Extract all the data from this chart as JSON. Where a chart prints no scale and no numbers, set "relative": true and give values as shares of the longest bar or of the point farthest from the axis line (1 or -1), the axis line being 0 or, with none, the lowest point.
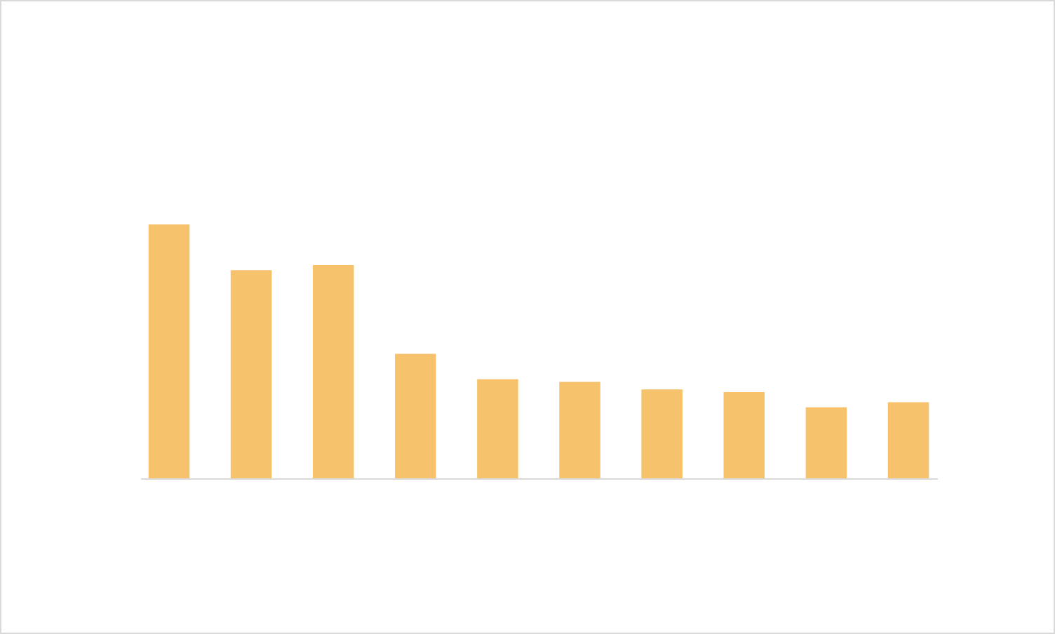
{
  "chart_data": {
    "type": "bar",
    "relative": true,
    "categories": [
      null,
      null,
      null,
      null,
      null,
      null,
      null,
      null,
      null,
      null
    ],
    "series": [
      {
        "color": "#f6c26b",
        "values": [
          1,
          0.82,
          0.84,
          0.49,
          0.39,
          0.38,
          0.35,
          0.34,
          0.28,
          0.3
        ]
      }
    ],
    "grid": false,
    "legend": false
  }
}
